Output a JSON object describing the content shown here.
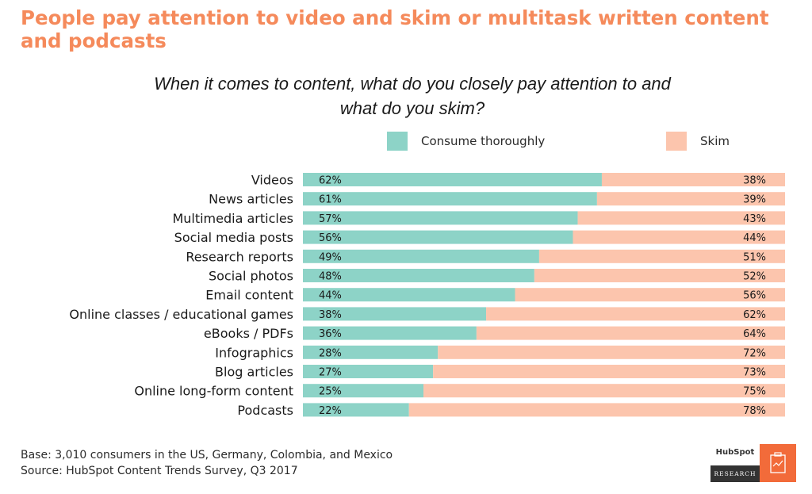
{
  "headline": "People pay attention to video and skim or multitask written content and podcasts",
  "chart_data": {
    "type": "bar",
    "stacked": true,
    "orientation": "horizontal",
    "title": "When it comes to content, what do you closely pay attention to and what do you skim?",
    "categories": [
      "Videos",
      "News articles",
      "Multimedia articles",
      "Social media posts",
      "Research reports",
      "Social photos",
      "Email content",
      "Online classes / educational games",
      "eBooks / PDFs",
      "Infographics",
      "Blog articles",
      "Online long-form content",
      "Podcasts"
    ],
    "series": [
      {
        "name": "Consume thoroughly",
        "color": "#8dd3c7",
        "values": [
          62,
          61,
          57,
          56,
          49,
          48,
          44,
          38,
          36,
          28,
          27,
          25,
          22
        ]
      },
      {
        "name": "Skim",
        "color": "#fcc5ad",
        "values": [
          38,
          39,
          43,
          44,
          51,
          52,
          56,
          62,
          64,
          72,
          73,
          75,
          78
        ]
      }
    ],
    "value_suffix": "%",
    "xlim": [
      0,
      100
    ],
    "legend": "top",
    "grid": false
  },
  "footer": {
    "base": "Base: 3,010 consumers in the US, Germany, Colombia, and Mexico",
    "source": "Source: HubSpot Content Trends Survey, Q3 2017"
  },
  "logo": {
    "brand": "HubSpot",
    "label": "RESEARCH",
    "icon": "clipboard-chart-icon",
    "accent": "#f26b3a"
  }
}
